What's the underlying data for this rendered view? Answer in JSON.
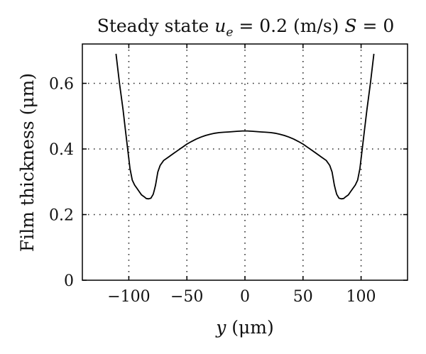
{
  "chart_data": {
    "type": "line",
    "title": "Steady state u_e = 0.2 (m/s) S = 0",
    "title_parts": {
      "prefix": "Steady state ",
      "var": "u",
      "sub": "e",
      "middle": " = 0.2 (m/s) ",
      "var2": "S",
      "suffix": " = 0"
    },
    "xlabel": "y (μm)",
    "xlabel_parts": {
      "var": "y",
      "rest": " (μm)"
    },
    "ylabel": "Film thickness (μm)",
    "xlim": [
      -140,
      140
    ],
    "ylim": [
      0,
      0.72
    ],
    "xticks": [
      -100,
      -50,
      0,
      50,
      100
    ],
    "xtick_labels": [
      "−100",
      "−50",
      "0",
      "50",
      "100"
    ],
    "yticks": [
      0,
      0.2,
      0.4,
      0.6
    ],
    "ytick_labels": [
      "0",
      "0.2",
      "0.4",
      "0.6"
    ],
    "grid": true,
    "series": [
      {
        "color": "#000000",
        "x": [
          -111,
          -108,
          -105,
          -103,
          -101,
          -99,
          -97,
          -95,
          -93,
          -91,
          -89,
          -87,
          -85,
          -83,
          -81,
          -79,
          -78,
          -77,
          -76,
          -75,
          -73,
          -70,
          -66,
          -62,
          -58,
          -54,
          -50,
          -46,
          -42,
          -38,
          -34,
          -30,
          -26,
          -22,
          -18,
          -14,
          -10,
          -6,
          -2,
          0,
          2,
          6,
          10,
          14,
          18,
          22,
          26,
          30,
          34,
          38,
          42,
          46,
          50,
          54,
          58,
          62,
          66,
          70,
          73,
          75,
          76,
          77,
          78,
          79,
          81,
          83,
          85,
          87,
          89,
          91,
          93,
          95,
          97,
          99,
          101,
          103,
          105,
          108,
          111
        ],
        "y": [
          0.69,
          0.6,
          0.52,
          0.46,
          0.4,
          0.34,
          0.305,
          0.29,
          0.28,
          0.27,
          0.26,
          0.255,
          0.249,
          0.248,
          0.25,
          0.262,
          0.275,
          0.29,
          0.31,
          0.33,
          0.35,
          0.365,
          0.375,
          0.385,
          0.395,
          0.405,
          0.415,
          0.423,
          0.43,
          0.436,
          0.441,
          0.445,
          0.448,
          0.45,
          0.451,
          0.452,
          0.453,
          0.454,
          0.455,
          0.455,
          0.455,
          0.454,
          0.453,
          0.452,
          0.451,
          0.45,
          0.448,
          0.445,
          0.441,
          0.436,
          0.43,
          0.423,
          0.415,
          0.405,
          0.395,
          0.385,
          0.375,
          0.365,
          0.35,
          0.33,
          0.31,
          0.29,
          0.275,
          0.262,
          0.25,
          0.248,
          0.249,
          0.255,
          0.26,
          0.27,
          0.28,
          0.29,
          0.305,
          0.34,
          0.4,
          0.46,
          0.52,
          0.6,
          0.69
        ]
      }
    ]
  }
}
